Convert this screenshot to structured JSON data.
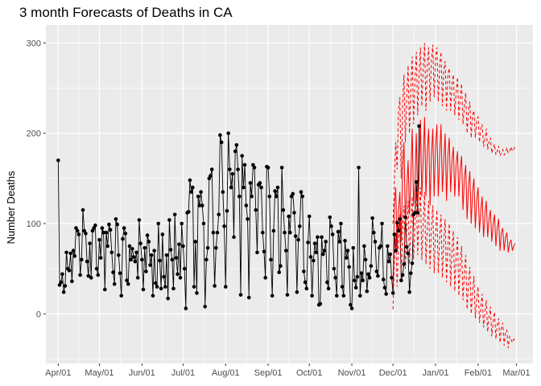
{
  "chart_data": {
    "type": "line",
    "title": "3 month Forecasts of Deaths in CA",
    "xlabel": "",
    "ylabel": "Number Deaths",
    "x_range": [
      "2020-03-23",
      "2021-03-13"
    ],
    "ylim": [
      -55,
      320
    ],
    "grid": true,
    "legend": "none",
    "x_ticks": [
      {
        "date": "2020-04-01",
        "label": "Apr/01"
      },
      {
        "date": "2020-05-01",
        "label": "May/01"
      },
      {
        "date": "2020-06-01",
        "label": "Jun/01"
      },
      {
        "date": "2020-07-01",
        "label": "Jul/01"
      },
      {
        "date": "2020-08-01",
        "label": "Aug/01"
      },
      {
        "date": "2020-09-01",
        "label": "Sep/01"
      },
      {
        "date": "2020-10-01",
        "label": "Oct/01"
      },
      {
        "date": "2020-11-01",
        "label": "Nov/01"
      },
      {
        "date": "2020-12-01",
        "label": "Dec/01"
      },
      {
        "date": "2021-01-01",
        "label": "Jan/01"
      },
      {
        "date": "2021-02-01",
        "label": "Feb/01"
      },
      {
        "date": "2021-03-01",
        "label": "Mar/01"
      }
    ],
    "y_ticks": [
      0,
      100,
      200,
      300
    ],
    "colors": {
      "observed": "#000000",
      "forecast": "#ff0000",
      "panel": "#ebebeb",
      "grid": "#ffffff"
    },
    "series": [
      {
        "style": "line-points",
        "x_start": "2020-04-01",
        "x_step_days": 1,
        "values": [
          170,
          32,
          35,
          44,
          24,
          31,
          68,
          50,
          48,
          67,
          36,
          70,
          64,
          95,
          92,
          88,
          43,
          60,
          115,
          92,
          89,
          58,
          42,
          78,
          40,
          92,
          95,
          98,
          50,
          43,
          82,
          62,
          95,
          90,
          27,
          90,
          75,
          99,
          93,
          68,
          46,
          33,
          105,
          99,
          65,
          45,
          20,
          83,
          95,
          89,
          37,
          33,
          75,
          60,
          72,
          63,
          58,
          68,
          40,
          104,
          78,
          60,
          27,
          73,
          47,
          87,
          80,
          54,
          65,
          20,
          70,
          34,
          30,
          100,
          59,
          28,
          88,
          41,
          30,
          65,
          17,
          104,
          71,
          60,
          28,
          110,
          62,
          44,
          77,
          40,
          100,
          75,
          50,
          6,
          112,
          113,
          148,
          135,
          140,
          30,
          80,
          23,
          130,
          120,
          135,
          120,
          100,
          8,
          60,
          73,
          150,
          153,
          160,
          90,
          31,
          73,
          90,
          110,
          198,
          190,
          135,
          97,
          30,
          114,
          200,
          160,
          140,
          155,
          85,
          180,
          187,
          160,
          130,
          21,
          175,
          140,
          165,
          120,
          105,
          18,
          145,
          130,
          165,
          162,
          115,
          68,
          143,
          145,
          140,
          90,
          69,
          40,
          163,
          162,
          130,
          60,
          20,
          92,
          136,
          130,
          140,
          46,
          53,
          162,
          115,
          90,
          70,
          21,
          108,
          90,
          130,
          133,
          112,
          86,
          24,
          82,
          97,
          135,
          130,
          47,
          35,
          28,
          79,
          108,
          63,
          20,
          59,
          78,
          68,
          85,
          10,
          11,
          85,
          66,
          70,
          80,
          35,
          28,
          107,
          97,
          88,
          50,
          40,
          20,
          91,
          80,
          100,
          30,
          20,
          81,
          62,
          70,
          52,
          10,
          6,
          73,
          37,
          29,
          41,
          162,
          20,
          45,
          37,
          75,
          60,
          25,
          44,
          40,
          53,
          106,
          90,
          80,
          47,
          42,
          73,
          75,
          100,
          38,
          29,
          22,
          75,
          58,
          66,
          40,
          23,
          88,
          70,
          101,
          92,
          105,
          37,
          43,
          55,
          107,
          74,
          67,
          24,
          45,
          56,
          110,
          112,
          146,
          112,
          208
        ]
      },
      {
        "style": "line",
        "x_start": "2020-12-01",
        "x_step_days": 1,
        "values": [
          30,
          120,
          140,
          70,
          115,
          135,
          80,
          160,
          190,
          100,
          135,
          170,
          110,
          150,
          205,
          120,
          145,
          200,
          120,
          150,
          215,
          130,
          170,
          218,
          130,
          180,
          205,
          120,
          175,
          205,
          130,
          185,
          210,
          130,
          175,
          210,
          135,
          170,
          200,
          125,
          175,
          195,
          135,
          170,
          185,
          130,
          165,
          180,
          130,
          160,
          175,
          115,
          150,
          165,
          105,
          140,
          158,
          100,
          135,
          150,
          95,
          125,
          140,
          90,
          115,
          130,
          85,
          110,
          125,
          85,
          105,
          115,
          80,
          100,
          110,
          75,
          95,
          105,
          70,
          90,
          95,
          70,
          85,
          90,
          68,
          78,
          82,
          70,
          75,
          78
        ]
      },
      {
        "style": "dashed",
        "x_start": "2020-12-01",
        "x_step_days": 1,
        "values": [
          100,
          150,
          190,
          160,
          225,
          240,
          150,
          230,
          265,
          190,
          240,
          275,
          200,
          250,
          285,
          210,
          260,
          290,
          220,
          265,
          295,
          230,
          270,
          300,
          225,
          275,
          295,
          235,
          280,
          298,
          240,
          285,
          295,
          235,
          275,
          290,
          230,
          270,
          280,
          225,
          265,
          272,
          225,
          255,
          265,
          220,
          245,
          262,
          215,
          240,
          255,
          210,
          230,
          245,
          200,
          225,
          235,
          195,
          220,
          225,
          195,
          215,
          218,
          190,
          205,
          210,
          185,
          195,
          205,
          182,
          190,
          195,
          178,
          183,
          188,
          176,
          180,
          186,
          175,
          178,
          182,
          176,
          178,
          184,
          178,
          180,
          185,
          180,
          182,
          186
        ]
      },
      {
        "style": "dashed",
        "x_start": "2020-12-01",
        "x_step_days": 1,
        "values": [
          5,
          60,
          90,
          30,
          80,
          110,
          40,
          95,
          120,
          50,
          95,
          125,
          55,
          100,
          130,
          60,
          105,
          135,
          65,
          110,
          140,
          60,
          100,
          135,
          55,
          95,
          125,
          50,
          95,
          120,
          45,
          90,
          115,
          45,
          85,
          110,
          40,
          80,
          105,
          35,
          75,
          100,
          30,
          70,
          92,
          25,
          62,
          85,
          20,
          55,
          75,
          15,
          45,
          65,
          5,
          35,
          52,
          0,
          25,
          42,
          -5,
          15,
          30,
          -10,
          8,
          22,
          -15,
          2,
          15,
          -20,
          -3,
          8,
          -25,
          -8,
          2,
          -28,
          -12,
          -5,
          -32,
          -16,
          -10,
          -35,
          -20,
          -18,
          -38,
          -25,
          -28,
          -32,
          -28,
          -30
        ]
      }
    ]
  }
}
